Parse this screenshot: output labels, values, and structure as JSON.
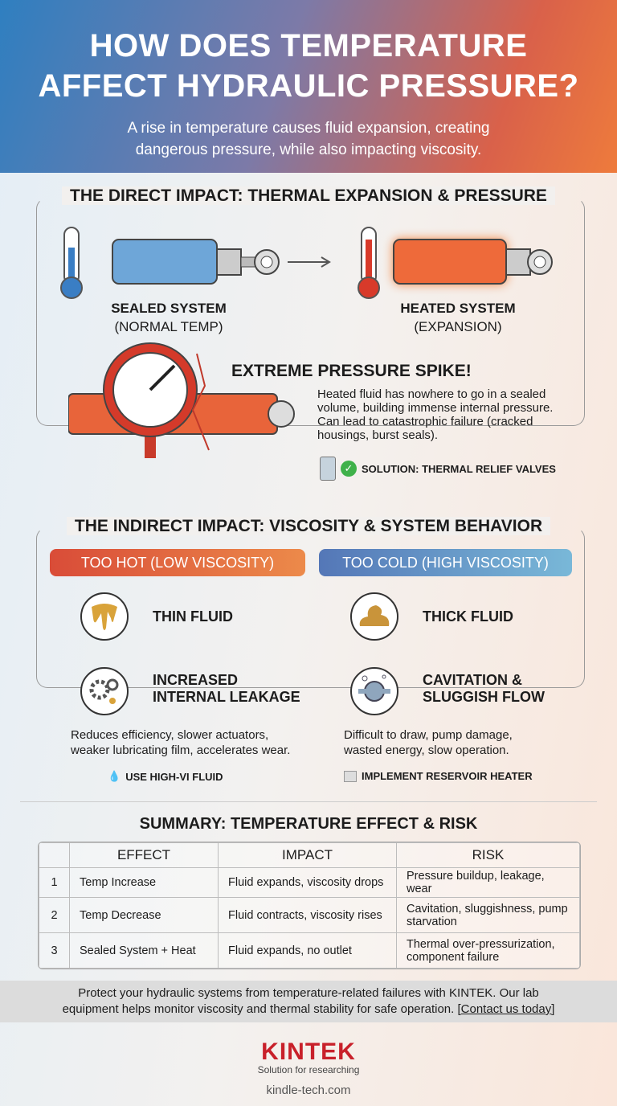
{
  "header": {
    "title_line1": "HOW DOES TEMPERATURE",
    "title_line2": "AFFECT HYDRAULIC PRESSURE?",
    "subtitle_line1": "A rise in temperature causes fluid expansion, creating",
    "subtitle_line2": "dangerous pressure, while also impacting viscosity."
  },
  "direct": {
    "title": "THE DIRECT IMPACT: THERMAL EXPANSION & PRESSURE",
    "sealed": {
      "label": "SEALED SYSTEM",
      "sub": "(NORMAL TEMP)"
    },
    "heated": {
      "label": "HEATED SYSTEM",
      "sub": "(EXPANSION)"
    },
    "spike_title": "EXTREME PRESSURE SPIKE!",
    "spike_text": "Heated fluid has nowhere to go in a sealed volume, building immense internal pressure. Can lead to catastrophic failure (cracked housings, burst seals).",
    "solution": "SOLUTION: THERMAL RELIEF VALVES"
  },
  "indirect": {
    "title": "THE INDIRECT IMPACT: VISCOSITY & SYSTEM BEHAVIOR",
    "hot": {
      "header": "TOO HOT (LOW VISCOSITY)",
      "item1": "THIN FLUID",
      "item2a": "INCREASED",
      "item2b": "INTERNAL LEAKAGE",
      "desc_line1": "Reduces efficiency, slower actuators,",
      "desc_line2": "weaker lubricating film, accelerates wear.",
      "solution": "USE HIGH-VI FLUID"
    },
    "cold": {
      "header": "TOO COLD (HIGH VISCOSITY)",
      "item1": "THICK FLUID",
      "item2a": "CAVITATION &",
      "item2b": "SLUGGISH FLOW",
      "desc_line1": "Difficult to draw, pump damage,",
      "desc_line2": "wasted energy, slow operation.",
      "solution": "IMPLEMENT RESERVOIR HEATER"
    }
  },
  "summary": {
    "title": "SUMMARY: TEMPERATURE EFFECT & RISK",
    "headers": [
      "",
      "EFFECT",
      "IMPACT",
      "RISK"
    ],
    "rows": [
      [
        "1",
        "Temp Increase",
        "Fluid expands, viscosity drops",
        "Pressure buildup, leakage, wear"
      ],
      [
        "2",
        "Temp Decrease",
        "Fluid contracts, viscosity rises",
        "Cavitation, sluggishness, pump starvation"
      ],
      [
        "3",
        "Sealed System + Heat",
        "Fluid expands, no outlet",
        "Thermal over-pressurization, component failure"
      ]
    ]
  },
  "footer": {
    "text_line1": "Protect your hydraulic systems from temperature-related failures with KINTEK. Our lab",
    "text_line2": "equipment helps monitor viscosity and thermal stability for safe operation.",
    "link": "[Contact us today]"
  },
  "brand": {
    "logo": "KINTEK",
    "tagline": "Solution for researching",
    "url": "kindle-tech.com"
  },
  "colors": {
    "hot": "#e5573a",
    "cold": "#4f8fc4",
    "accent": "#c8202a"
  }
}
